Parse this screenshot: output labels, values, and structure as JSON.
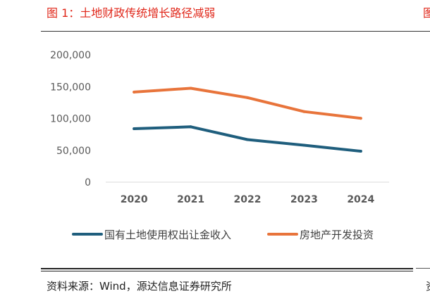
{
  "figure": {
    "title": "图 1：土地财政传统增长路径减弱",
    "next_title_fragment": "图",
    "source": "资料来源：Wind，源达信息证券研究所",
    "next_source_fragment": "资"
  },
  "chart_data": {
    "type": "line",
    "title": "",
    "xlabel": "",
    "ylabel": "",
    "categories": [
      "2020",
      "2021",
      "2022",
      "2023",
      "2024"
    ],
    "ylim": [
      0,
      200000
    ],
    "yticks": [
      0,
      50000,
      100000,
      150000,
      200000
    ],
    "ytick_labels": [
      "0",
      "50,000",
      "100,000",
      "150,000",
      "200,000"
    ],
    "grid": false,
    "legend_position": "bottom",
    "series": [
      {
        "name": "国有土地使用权出让金收入",
        "color": "#1f5e7d",
        "values": [
          84000,
          87000,
          66800,
          58000,
          48600
        ]
      },
      {
        "name": "房地产开发投资",
        "color": "#e8743b",
        "values": [
          141500,
          147500,
          132800,
          110800,
          100300
        ]
      }
    ]
  }
}
